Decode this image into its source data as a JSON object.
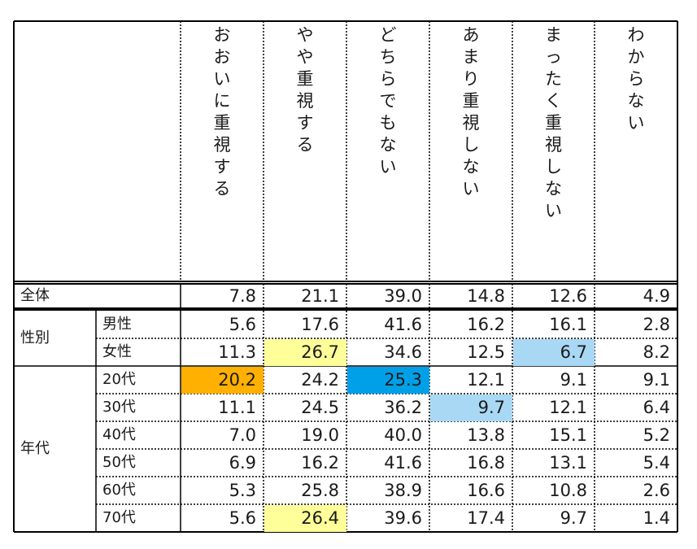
{
  "chart_data": {
    "type": "table",
    "columns": [
      "おおいに重視する",
      "やや重視する",
      "どちらでもない",
      "あまり重視しない",
      "まったく重視しない",
      "わからない"
    ],
    "groups": [
      {
        "label": "全体",
        "rows": [
          {
            "label": "",
            "values": [
              "7.8",
              "21.1",
              "39.0",
              "14.8",
              "12.6",
              "4.9"
            ],
            "highlights": [
              null,
              null,
              null,
              null,
              null,
              null
            ]
          }
        ]
      },
      {
        "label": "性別",
        "rows": [
          {
            "label": "男性",
            "values": [
              "5.6",
              "17.6",
              "41.6",
              "16.2",
              "16.1",
              "2.8"
            ],
            "highlights": [
              null,
              null,
              null,
              null,
              null,
              null
            ]
          },
          {
            "label": "女性",
            "values": [
              "11.3",
              "26.7",
              "34.6",
              "12.5",
              "6.7",
              "8.2"
            ],
            "highlights": [
              null,
              "yellow",
              null,
              null,
              "lightblue",
              null
            ]
          }
        ]
      },
      {
        "label": "年代",
        "rows": [
          {
            "label": "20代",
            "values": [
              "20.2",
              "24.2",
              "25.3",
              "12.1",
              "9.1",
              "9.1"
            ],
            "highlights": [
              "orange",
              null,
              "blue",
              null,
              null,
              null
            ]
          },
          {
            "label": "30代",
            "values": [
              "11.1",
              "24.5",
              "36.2",
              "9.7",
              "12.1",
              "6.4"
            ],
            "highlights": [
              null,
              null,
              null,
              "lightblue",
              null,
              null
            ]
          },
          {
            "label": "40代",
            "values": [
              "7.0",
              "19.0",
              "40.0",
              "13.8",
              "15.1",
              "5.2"
            ],
            "highlights": [
              null,
              null,
              null,
              null,
              null,
              null
            ]
          },
          {
            "label": "50代",
            "values": [
              "6.9",
              "16.2",
              "41.6",
              "16.8",
              "13.1",
              "5.4"
            ],
            "highlights": [
              null,
              null,
              null,
              null,
              null,
              null
            ]
          },
          {
            "label": "60代",
            "values": [
              "5.3",
              "25.8",
              "38.9",
              "16.6",
              "10.8",
              "2.6"
            ],
            "highlights": [
              null,
              null,
              null,
              null,
              null,
              null
            ]
          },
          {
            "label": "70代",
            "values": [
              "5.6",
              "26.4",
              "39.6",
              "17.4",
              "9.7",
              "1.4"
            ],
            "highlights": [
              null,
              "yellow",
              null,
              null,
              null,
              null
            ]
          }
        ]
      }
    ],
    "highlight_colors": {
      "orange": "#FFB000",
      "yellow": "#FFFF99",
      "blue": "#00A0E9",
      "lightblue": "#A9D8F5"
    }
  }
}
